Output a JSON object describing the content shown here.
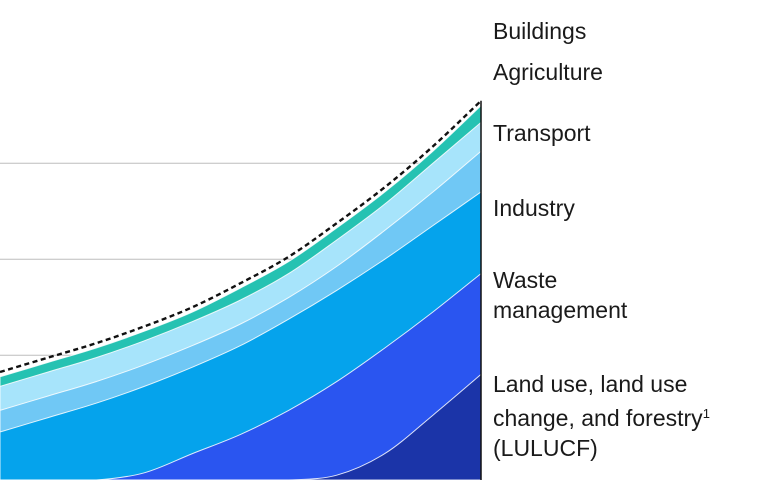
{
  "chart_data": {
    "type": "area",
    "stacked": true,
    "title": "",
    "xlabel": "",
    "ylabel": "",
    "grid": true,
    "legend_placement": "right",
    "x": [
      0,
      0.1,
      0.2,
      0.3,
      0.4,
      0.5,
      0.6,
      0.7,
      0.8,
      0.9,
      1.0
    ],
    "ylim": [
      0,
      100
    ],
    "gridlines": [
      26,
      46,
      66
    ],
    "series": [
      {
        "name": "Land use, land use change, and forestry",
        "footnote": "1",
        "name_line3": "(LULUCF)",
        "color": "#1b34a8",
        "values": [
          0,
          0,
          0,
          0,
          0,
          0,
          0,
          1.0,
          5.5,
          13.5,
          22.0
        ]
      },
      {
        "name": "Waste management",
        "color": "#2a55f0",
        "values": [
          0,
          0,
          0,
          1.5,
          5.5,
          9.5,
          14.5,
          20.5,
          27.5,
          35.0,
          43.0
        ]
      },
      {
        "name": "Industry",
        "color": "#05a3ec",
        "values": [
          10.0,
          13.0,
          16.0,
          19.5,
          23.5,
          28.0,
          33.5,
          39.5,
          46.0,
          53.0,
          60.0
        ]
      },
      {
        "name": "Transport",
        "color": "#70c8f5",
        "values": [
          14.5,
          17.5,
          20.5,
          24.0,
          28.0,
          32.5,
          38.0,
          44.5,
          52.0,
          60.0,
          68.5
        ]
      },
      {
        "name": "Agriculture",
        "color": "#a7e4fb",
        "values": [
          19.5,
          22.5,
          25.5,
          29.0,
          33.0,
          37.5,
          43.0,
          50.0,
          57.5,
          66.0,
          74.5
        ]
      },
      {
        "name": "Buildings",
        "color": "#25c2b2",
        "values": [
          21.5,
          24.5,
          27.5,
          31.0,
          35.0,
          40.0,
          45.5,
          52.5,
          60.0,
          68.5,
          78.0
        ]
      }
    ],
    "total_line": {
      "style": "dashed",
      "color": "#111111",
      "values": [
        22.5,
        25.5,
        28.5,
        32.0,
        36.0,
        41.0,
        46.5,
        53.5,
        61.0,
        69.5,
        79.0
      ]
    }
  },
  "legend": {
    "buildings": "Buildings",
    "agriculture": "Agriculture",
    "transport": "Transport",
    "industry": "Industry",
    "waste_line1": "Waste",
    "waste_line2": "management",
    "lulucf_line1": "Land use, land use",
    "lulucf_line2": "change, and forestry",
    "lulucf_sup": "1",
    "lulucf_line3": "(LULUCF)"
  }
}
